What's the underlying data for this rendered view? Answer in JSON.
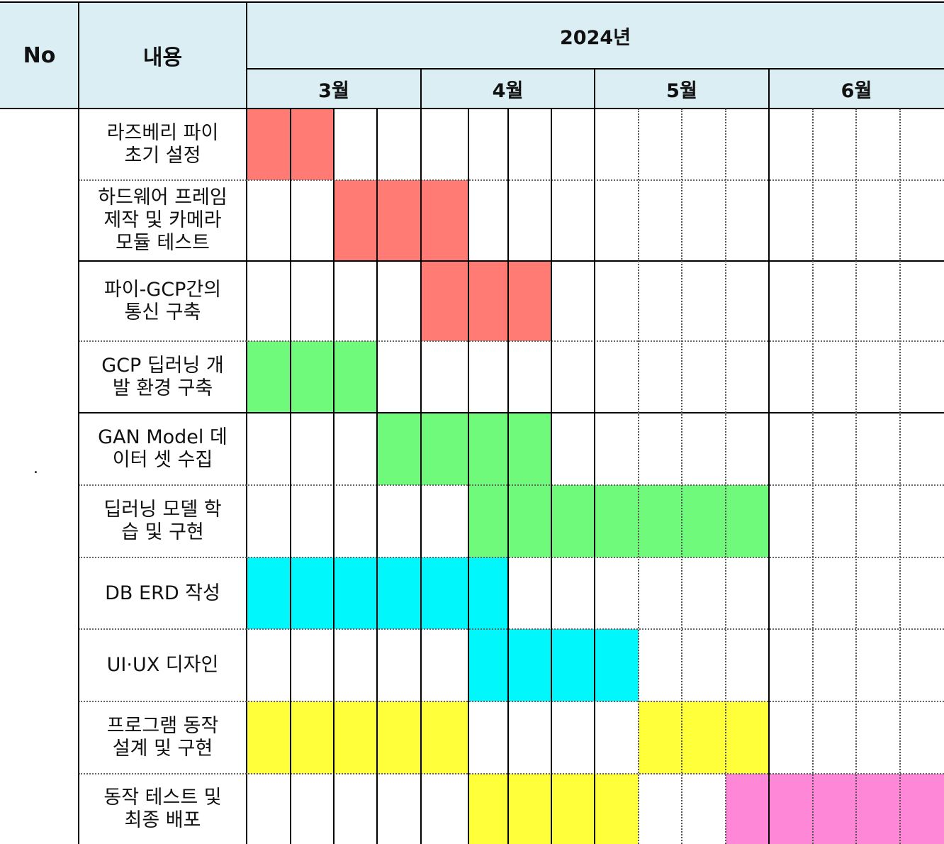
{
  "header": {
    "no_label": "No",
    "content_label": "내용",
    "year_label": "2024년",
    "months": [
      "3월",
      "4월",
      "5월",
      "6월"
    ]
  },
  "row_number": ".",
  "colors": {
    "header_bg": "#dbeef4",
    "red": "#ff7b73",
    "green": "#70fa7b",
    "cyan": "#00f8fd",
    "yellow": "#ffff3a",
    "pink": "#ff87d8"
  },
  "tasks": [
    {
      "label": "라즈베리 파이\n초기 설정",
      "color": "red",
      "weeks": [
        0,
        1
      ]
    },
    {
      "label": "하드웨어 프레임\n제작 및 카메라\n모듈 테스트",
      "color": "red",
      "weeks": [
        2,
        3,
        4
      ]
    },
    {
      "label": "파이-GCP간의\n통신 구축",
      "color": "red",
      "weeks": [
        4,
        5,
        6
      ]
    },
    {
      "label": "GCP 딥러닝 개\n발 환경 구축",
      "color": "green",
      "weeks": [
        0,
        1,
        2
      ]
    },
    {
      "label": "GAN Model 데\n이터 셋 수집",
      "color": "green",
      "weeks": [
        3,
        4,
        5,
        6
      ]
    },
    {
      "label": "딥러닝 모델 학\n습 및 구현",
      "color": "green",
      "weeks": [
        5,
        6,
        7,
        8,
        9,
        10,
        11
      ]
    },
    {
      "label": "DB ERD 작성",
      "color": "cyan",
      "weeks": [
        0,
        1,
        2,
        3,
        4,
        5
      ]
    },
    {
      "label": "UI·UX 디자인",
      "color": "cyan",
      "weeks": [
        5,
        6,
        7,
        8
      ]
    },
    {
      "label": "프로그램 동작\n설계 및 구현",
      "color": "yellow",
      "weeks": [
        0,
        1,
        2,
        3,
        4,
        9,
        10,
        11
      ]
    },
    {
      "label": "동작 테스트 및\n최종 배포",
      "color": "yellow",
      "weeks": [
        5,
        6,
        7,
        8
      ],
      "extra": {
        "color": "pink",
        "weeks": [
          11,
          12,
          13,
          14,
          15
        ]
      }
    }
  ]
}
